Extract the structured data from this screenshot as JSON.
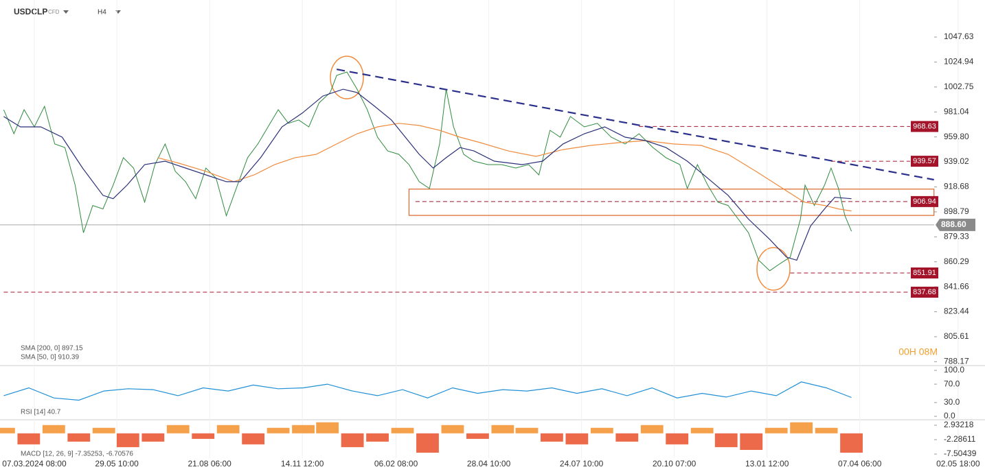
{
  "chart_data": [
    {
      "type": "line",
      "symbol": "USDCLP",
      "instrument": "CFD",
      "timeframe": "H4",
      "timer": "00H 08M",
      "ylog": true,
      "ylim": [
        785.5,
        1082.2
      ],
      "yticks": [
        1047.63,
        1024.94,
        1002.75,
        981.04,
        {
          "value": 959.8,
          "label": "959.80"
        },
        939.02,
        918.68,
        898.79,
        879.33,
        860.29,
        841.66,
        823.44,
        805.61,
        788.17
      ],
      "xlim": [
        -0.37,
        10.25
      ],
      "xticks": [
        {
          "value": 0,
          "label": "07.03.2024 08:00"
        },
        {
          "value": 0.89,
          "label": "29.05 10:00"
        },
        {
          "value": 1.89,
          "label": "21.08 06:00"
        },
        {
          "value": 2.89,
          "label": "14.11 12:00"
        },
        {
          "value": 3.9,
          "label": "06.02 08:00"
        },
        {
          "value": 4.9,
          "label": "28.04 10:00"
        },
        {
          "value": 5.9,
          "label": "24.07 10:00"
        },
        {
          "value": 6.9,
          "label": "20.10 07:00"
        },
        {
          "value": 7.9,
          "label": "13.01 12:00"
        },
        {
          "value": 8.9,
          "label": "07.04 06:00"
        },
        {
          "value": 9.96,
          "label": "02.05 18:00"
        }
      ],
      "grid": true,
      "series": [
        {
          "color": "#2e8b3c",
          "x": [
            -0.33,
            -0.22,
            -0.11,
            0,
            0.11,
            0.22,
            0.33,
            0.44,
            0.53,
            0.63,
            0.74,
            0.85,
            0.96,
            1.07,
            1.19,
            1.3,
            1.41,
            1.52,
            1.63,
            1.74,
            1.85,
            1.96,
            2.07,
            2.19,
            2.3,
            2.41,
            2.52,
            2.63,
            2.74,
            2.85,
            2.96,
            3.07,
            3.19,
            3.26,
            3.37,
            3.48,
            3.59,
            3.7,
            3.81,
            3.93,
            4.04,
            4.15,
            4.26,
            4.37,
            4.44,
            4.52,
            4.63,
            4.74,
            4.89,
            5.04,
            5.19,
            5.33,
            5.44,
            5.56,
            5.67,
            5.78,
            5.93,
            6.07,
            6.22,
            6.37,
            6.52,
            6.67,
            6.81,
            6.96,
            7.04,
            7.15,
            7.26,
            7.37,
            7.48,
            7.59,
            7.7,
            7.81,
            7.93,
            8.04,
            8.15,
            8.26,
            8.31,
            8.41,
            8.52,
            8.59,
            8.67,
            8.74,
            8.81
          ],
          "values": [
            983.0,
            962.5,
            983.0,
            968.3,
            985.9,
            953.9,
            950.9,
            920.1,
            882.5,
            903.8,
            901.1,
            920.1,
            942.5,
            934.0,
            906.5,
            936.8,
            953.9,
            931.3,
            922.9,
            909.2,
            934.0,
            925.7,
            895.7,
            920.1,
            942.5,
            953.9,
            968.3,
            983.0,
            971.3,
            974.2,
            968.3,
            988.8,
            997.9,
            1013.0,
            1016.0,
            1000.8,
            983.0,
            959.6,
            948.1,
            945.3,
            936.8,
            922.9,
            917.4,
            953.9,
            1000.8,
            968.3,
            945.3,
            939.6,
            936.8,
            936.8,
            934.0,
            936.8,
            928.4,
            965.4,
            959.6,
            977.1,
            968.3,
            971.3,
            959.6,
            953.9,
            962.5,
            950.9,
            942.5,
            936.8,
            917.4,
            936.8,
            920.1,
            906.5,
            903.8,
            893.1,
            882.5,
            861.5,
            853.6,
            858.9,
            863.8,
            893.1,
            920.1,
            903.8,
            920.1,
            934.0,
            917.4,
            895.7,
            883.6
          ]
        },
        {
          "name": "SMA [200, 0] 897.15",
          "color": "#f08a3c",
          "x": [
            1.33,
            1.56,
            1.85,
            2.15,
            2.37,
            2.59,
            2.81,
            3.04,
            3.26,
            3.48,
            3.7,
            3.93,
            4.15,
            4.37,
            4.59,
            4.81,
            5.11,
            5.41,
            5.7,
            6.0,
            6.3,
            6.59,
            6.89,
            7.19,
            7.48,
            7.78,
            8.07,
            8.3,
            8.52,
            8.67,
            8.81
          ],
          "values": [
            942.5,
            937.9,
            931.3,
            922.9,
            928.4,
            936.8,
            942.5,
            945.3,
            953.9,
            962.5,
            968.3,
            971.3,
            969.5,
            965.4,
            959.6,
            955.0,
            948.1,
            943.6,
            949.2,
            952.7,
            955.0,
            956.7,
            953.9,
            952.7,
            945.3,
            931.3,
            917.4,
            906.5,
            903.8,
            901.1,
            899.5
          ]
        },
        {
          "name": "SMA [50, 0] 910.39",
          "color": "#2a2f7a",
          "x": [
            -0.33,
            -0.15,
            0.07,
            0.3,
            0.52,
            0.74,
            0.85,
            1.0,
            1.19,
            1.41,
            1.63,
            1.85,
            2.07,
            2.22,
            2.44,
            2.67,
            2.89,
            3.11,
            3.33,
            3.48,
            3.67,
            3.85,
            4.0,
            4.15,
            4.3,
            4.44,
            4.59,
            4.74,
            4.96,
            5.26,
            5.48,
            5.7,
            5.93,
            6.15,
            6.37,
            6.59,
            6.81,
            7.04,
            7.26,
            7.48,
            7.7,
            7.93,
            8.11,
            8.22,
            8.37,
            8.52,
            8.63,
            8.81
          ],
          "values": [
            977.1,
            968.3,
            968.3,
            959.6,
            934.0,
            911.9,
            909.2,
            920.1,
            936.8,
            939.6,
            934.0,
            928.4,
            922.9,
            922.9,
            942.5,
            968.3,
            980.1,
            994.8,
            1000.8,
            997.9,
            985.9,
            974.2,
            959.6,
            945.3,
            934.0,
            942.5,
            950.9,
            948.1,
            939.6,
            936.8,
            939.6,
            953.9,
            962.5,
            968.3,
            959.6,
            956.7,
            950.9,
            939.6,
            925.7,
            911.9,
            893.1,
            877.3,
            863.8,
            861.5,
            887.8,
            901.1,
            910.3,
            909.2
          ]
        }
      ],
      "levels": [
        {
          "value": 968.63,
          "x_start": 6.52
        },
        {
          "value": 939.57,
          "x_start": 8.59
        },
        {
          "value": 906.94,
          "x_start": 4.11
        },
        {
          "value": 851.91,
          "x_start": 8.15
        },
        {
          "value": 837.68,
          "x_start": -0.33
        }
      ],
      "level_color": "#a3132a",
      "last_price": {
        "value": 888.6,
        "label": "888.60"
      },
      "trendline": {
        "x": [
          3.26,
          9.7
        ],
        "values": [
          1018.4,
          924.5
        ],
        "color": "#2a2f8a"
      },
      "zone": {
        "x": [
          4.04,
          9.7
        ],
        "values": [
          916.9,
          896.0
        ],
        "color": "#d9662a"
      }
    },
    {
      "type": "line",
      "label": "RSI [14] 40.7",
      "color": "#1e8fd6",
      "ylim": [
        0,
        100
      ],
      "yticks": [
        {
          "value": 100,
          "label": "100.0"
        },
        {
          "value": 70,
          "label": "70.0"
        },
        {
          "value": 30,
          "label": "30.0"
        },
        {
          "value": 0,
          "label": "0.0"
        }
      ],
      "x": [
        -0.33,
        -0.06,
        0.21,
        0.48,
        0.75,
        1.01,
        1.28,
        1.55,
        1.82,
        2.09,
        2.36,
        2.63,
        2.9,
        3.16,
        3.43,
        3.7,
        3.97,
        4.24,
        4.51,
        4.78,
        5.05,
        5.31,
        5.58,
        5.85,
        6.12,
        6.39,
        6.66,
        6.93,
        7.2,
        7.46,
        7.73,
        8.0,
        8.27,
        8.54,
        8.81
      ],
      "values": [
        45,
        62,
        40,
        35,
        55,
        60,
        58,
        45,
        62,
        55,
        68,
        60,
        62,
        70,
        55,
        45,
        58,
        40,
        62,
        50,
        58,
        55,
        62,
        50,
        60,
        45,
        62,
        40,
        50,
        42,
        55,
        45,
        75,
        62,
        41
      ]
    },
    {
      "type": "bar",
      "label": "MACD [12, 26, 9] -7.35253, -6.70576",
      "colors": [
        "#f5a04a",
        "#ec6a4a"
      ],
      "ylim": [
        -8.99,
        4.92
      ],
      "yticks": [
        2.93218,
        -2.28611,
        -7.50439
      ],
      "x": [
        -0.33,
        -0.06,
        0.21,
        0.48,
        0.75,
        1.01,
        1.28,
        1.55,
        1.82,
        2.09,
        2.36,
        2.63,
        2.9,
        3.16,
        3.43,
        3.7,
        3.97,
        4.24,
        4.51,
        4.78,
        5.05,
        5.31,
        5.58,
        5.85,
        6.12,
        6.39,
        6.66,
        6.93,
        7.2,
        7.46,
        7.73,
        8.0,
        8.27,
        8.54,
        8.81
      ],
      "values": [
        2,
        -4,
        3,
        -3,
        2,
        -5,
        -3,
        3,
        -2,
        3,
        -4,
        2,
        3,
        4,
        -5,
        -3,
        2,
        -7,
        3,
        -2,
        3,
        2,
        -3,
        -4,
        2,
        -3,
        3,
        -4,
        2,
        -5,
        -6,
        2,
        4,
        2,
        -7
      ]
    }
  ]
}
